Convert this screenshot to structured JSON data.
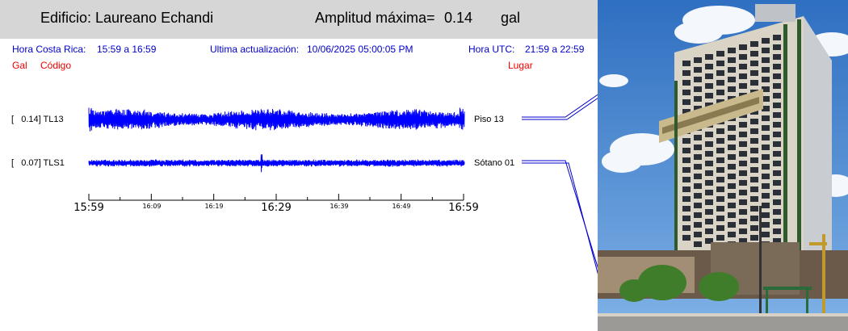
{
  "header": {
    "building_prefix": "Edificio:",
    "building_name": "Laureano Echandi",
    "amplitude_label": "Amplitud máxima=",
    "amplitude_value": "0.14",
    "amplitude_unit": "gal"
  },
  "info": {
    "cr_label": "Hora Costa Rica:",
    "cr_range": "15:59 a 16:59",
    "update_label": "Ultima actualización:",
    "update_value": "10/06/2025 05:00:05 PM",
    "utc_label": "Hora UTC:",
    "utc_range": "21:59 a 22:59"
  },
  "columns": {
    "gal": "Gal",
    "code": "Código",
    "place": "Lugar"
  },
  "channels": [
    {
      "label": "[   0.14] TL13",
      "amplitude": 0.14,
      "code": "TL13",
      "location": "Piso 13"
    },
    {
      "label": "[   0.07] TLS1",
      "amplitude": 0.07,
      "code": "TLS1",
      "location": "Sótano 01"
    }
  ],
  "time_axis": {
    "major_labels": [
      "15:59",
      "16:29",
      "16:59"
    ],
    "minor_labels": [
      "16:09",
      "16:19",
      "16:39",
      "16:49"
    ]
  },
  "colors": {
    "trace": "#0000ff",
    "info_text": "#0000cc",
    "red_text": "#ee0000",
    "header_bg": "#d6d6d6"
  }
}
